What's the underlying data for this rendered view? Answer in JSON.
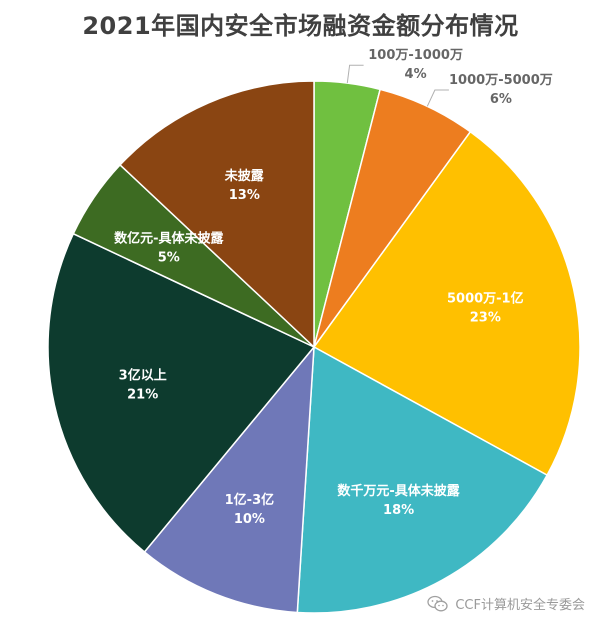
{
  "chart_data": {
    "type": "pie",
    "title": "2021年国内安全市场融资金额分布情况",
    "slices": [
      {
        "name": "100万-1000万",
        "percent_label": "4%",
        "value": 4,
        "color": "#70c040",
        "label_color": "#666666",
        "outside": true
      },
      {
        "name": "1000万-5000万",
        "percent_label": "6%",
        "value": 6,
        "color": "#ed7d1f",
        "label_color": "#666666",
        "outside": true
      },
      {
        "name": "5000万-1亿",
        "percent_label": "23%",
        "value": 23,
        "color": "#ffc000",
        "label_color": "#ffffff",
        "outside": false
      },
      {
        "name": "数千万元-具体未披露",
        "percent_label": "18%",
        "value": 18,
        "color": "#3fb8c3",
        "label_color": "#ffffff",
        "outside": false
      },
      {
        "name": "1亿-3亿",
        "percent_label": "10%",
        "value": 10,
        "color": "#6f78b8",
        "label_color": "#ffffff",
        "outside": false
      },
      {
        "name": "3亿以上",
        "percent_label": "21%",
        "value": 21,
        "color": "#0d3b2e",
        "label_color": "#ffffff",
        "outside": false
      },
      {
        "name": "数亿元-具体未披露",
        "percent_label": "5%",
        "value": 5,
        "color": "#3d6b22",
        "label_color": "#ffffff",
        "outside": false
      },
      {
        "name": "未披露",
        "percent_label": "13%",
        "value": 13,
        "color": "#8a4512",
        "label_color": "#ffffff",
        "outside": false
      }
    ]
  },
  "watermark": {
    "text": "CCF计算机安全专委会",
    "icon": "wechat-icon"
  }
}
